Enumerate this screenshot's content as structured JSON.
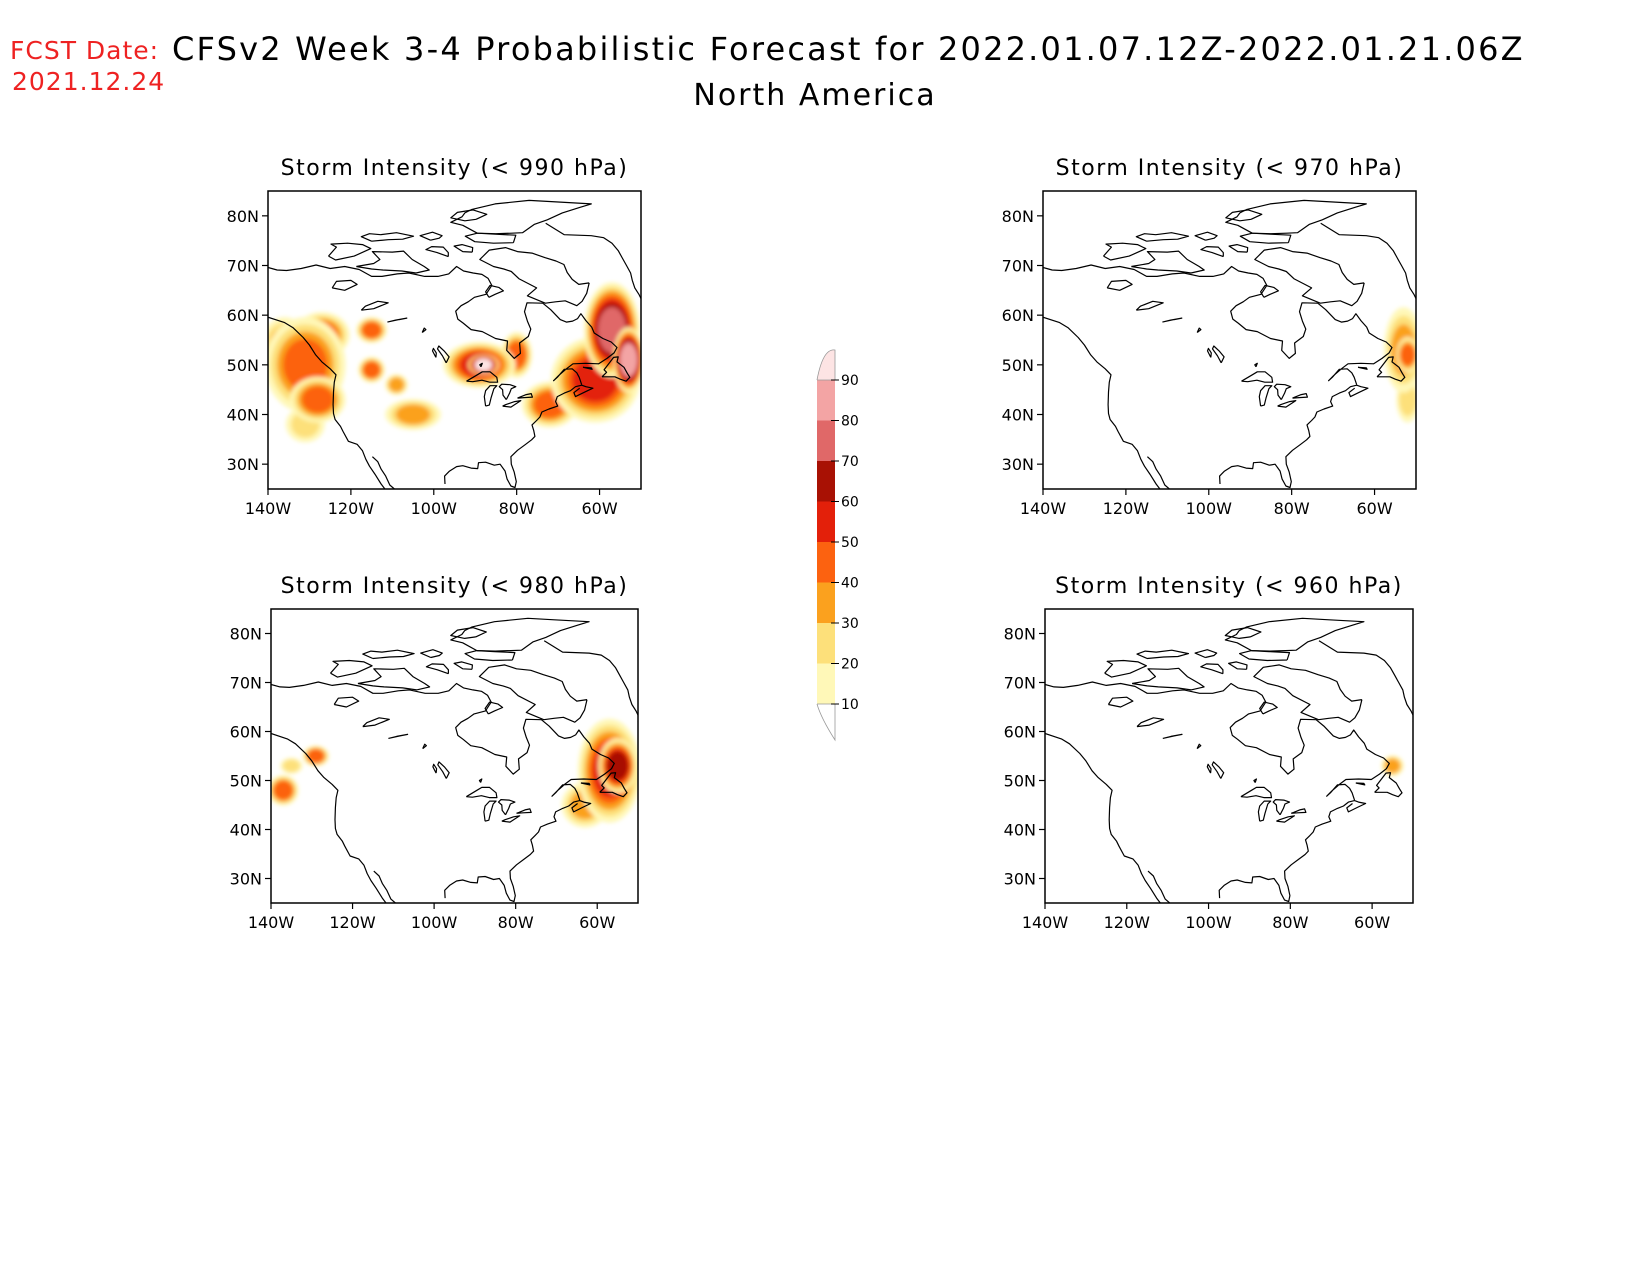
{
  "header": {
    "fcst_label": "FCST Date:",
    "fcst_date": "2021.12.24",
    "title": "CFSv2 Week 3-4 Probabilistic Forecast for 2022.01.07.12Z-2022.01.21.06Z",
    "subtitle": "North America"
  },
  "colorbar": {
    "levels": [
      10,
      20,
      30,
      40,
      50,
      60,
      70,
      80,
      90
    ],
    "colors": [
      "#fff8b8",
      "#fde07a",
      "#fba11e",
      "#fc6210",
      "#e3200a",
      "#a81104",
      "#e06868",
      "#f3a4a4",
      "#fde4e4"
    ]
  },
  "chart_data": [
    {
      "type": "heatmap",
      "title": "Storm Intensity (< 990 hPa)",
      "x_ticks": [
        "140W",
        "120W",
        "100W",
        "80W",
        "60W"
      ],
      "y_ticks": [
        "30N",
        "40N",
        "50N",
        "60N",
        "70N",
        "80N"
      ],
      "xlim": [
        -140,
        -50
      ],
      "ylim": [
        25,
        85
      ],
      "grid": false,
      "features": [
        {
          "lon": -131,
          "lat": 50,
          "value": 45,
          "rx": 9,
          "ry": 9
        },
        {
          "lon": -136,
          "lat": 54,
          "value": 30,
          "rx": 5,
          "ry": 5
        },
        {
          "lon": -127,
          "lat": 56,
          "value": 40,
          "rx": 6,
          "ry": 4
        },
        {
          "lon": -128,
          "lat": 43,
          "value": 45,
          "rx": 6,
          "ry": 4
        },
        {
          "lon": -131,
          "lat": 38,
          "value": 20,
          "rx": 4,
          "ry": 3
        },
        {
          "lon": -115,
          "lat": 57,
          "value": 45,
          "rx": 3,
          "ry": 2
        },
        {
          "lon": -115,
          "lat": 49,
          "value": 40,
          "rx": 2.5,
          "ry": 2
        },
        {
          "lon": -109,
          "lat": 46,
          "value": 30,
          "rx": 2,
          "ry": 1.5
        },
        {
          "lon": -105,
          "lat": 40,
          "value": 35,
          "rx": 6,
          "ry": 2.5
        },
        {
          "lon": -89,
          "lat": 50,
          "value": 50,
          "rx": 8,
          "ry": 4
        },
        {
          "lon": -88,
          "lat": 50,
          "value": 90,
          "rx": 3,
          "ry": 1.5
        },
        {
          "lon": -80,
          "lat": 52,
          "value": 40,
          "rx": 3,
          "ry": 4
        },
        {
          "lon": -72,
          "lat": 42,
          "value": 40,
          "rx": 6,
          "ry": 4
        },
        {
          "lon": -61,
          "lat": 47,
          "value": 50,
          "rx": 10,
          "ry": 8
        },
        {
          "lon": -57,
          "lat": 57,
          "value": 75,
          "rx": 6,
          "ry": 9
        },
        {
          "lon": -53,
          "lat": 51,
          "value": 88,
          "rx": 3,
          "ry": 6
        }
      ]
    },
    {
      "type": "heatmap",
      "title": "Storm Intensity (< 970 hPa)",
      "x_ticks": [
        "140W",
        "120W",
        "100W",
        "80W",
        "60W"
      ],
      "y_ticks": [
        "30N",
        "40N",
        "50N",
        "60N",
        "70N",
        "80N"
      ],
      "xlim": [
        -140,
        -50
      ],
      "ylim": [
        25,
        85
      ],
      "grid": false,
      "features": [
        {
          "lon": -53,
          "lat": 53,
          "value": 35,
          "rx": 4,
          "ry": 8
        },
        {
          "lon": -52,
          "lat": 52,
          "value": 40,
          "rx": 2,
          "ry": 3
        },
        {
          "lon": -52,
          "lat": 43,
          "value": 20,
          "rx": 2,
          "ry": 4
        }
      ]
    },
    {
      "type": "heatmap",
      "title": "Storm Intensity (< 980 hPa)",
      "x_ticks": [
        "140W",
        "120W",
        "100W",
        "80W",
        "60W"
      ],
      "y_ticks": [
        "30N",
        "40N",
        "50N",
        "60N",
        "70N",
        "80N"
      ],
      "xlim": [
        -140,
        -50
      ],
      "ylim": [
        25,
        85
      ],
      "grid": false,
      "features": [
        {
          "lon": -137,
          "lat": 48,
          "value": 45,
          "rx": 3,
          "ry": 2.5
        },
        {
          "lon": -129,
          "lat": 55,
          "value": 40,
          "rx": 2.5,
          "ry": 1.5
        },
        {
          "lon": -135,
          "lat": 53,
          "value": 20,
          "rx": 2,
          "ry": 1
        },
        {
          "lon": -57,
          "lat": 52,
          "value": 50,
          "rx": 7,
          "ry": 10
        },
        {
          "lon": -55,
          "lat": 53,
          "value": 65,
          "rx": 4,
          "ry": 5
        },
        {
          "lon": -63,
          "lat": 45,
          "value": 35,
          "rx": 5,
          "ry": 4
        },
        {
          "lon": -56,
          "lat": 57,
          "value": 30,
          "rx": 3,
          "ry": 3
        }
      ]
    },
    {
      "type": "heatmap",
      "title": "Storm Intensity (< 960 hPa)",
      "x_ticks": [
        "140W",
        "120W",
        "100W",
        "80W",
        "60W"
      ],
      "y_ticks": [
        "30N",
        "40N",
        "50N",
        "60N",
        "70N",
        "80N"
      ],
      "xlim": [
        -140,
        -50
      ],
      "ylim": [
        25,
        85
      ],
      "grid": false,
      "features": [
        {
          "lon": -55,
          "lat": 53,
          "value": 30,
          "rx": 2,
          "ry": 1.5
        }
      ]
    }
  ]
}
